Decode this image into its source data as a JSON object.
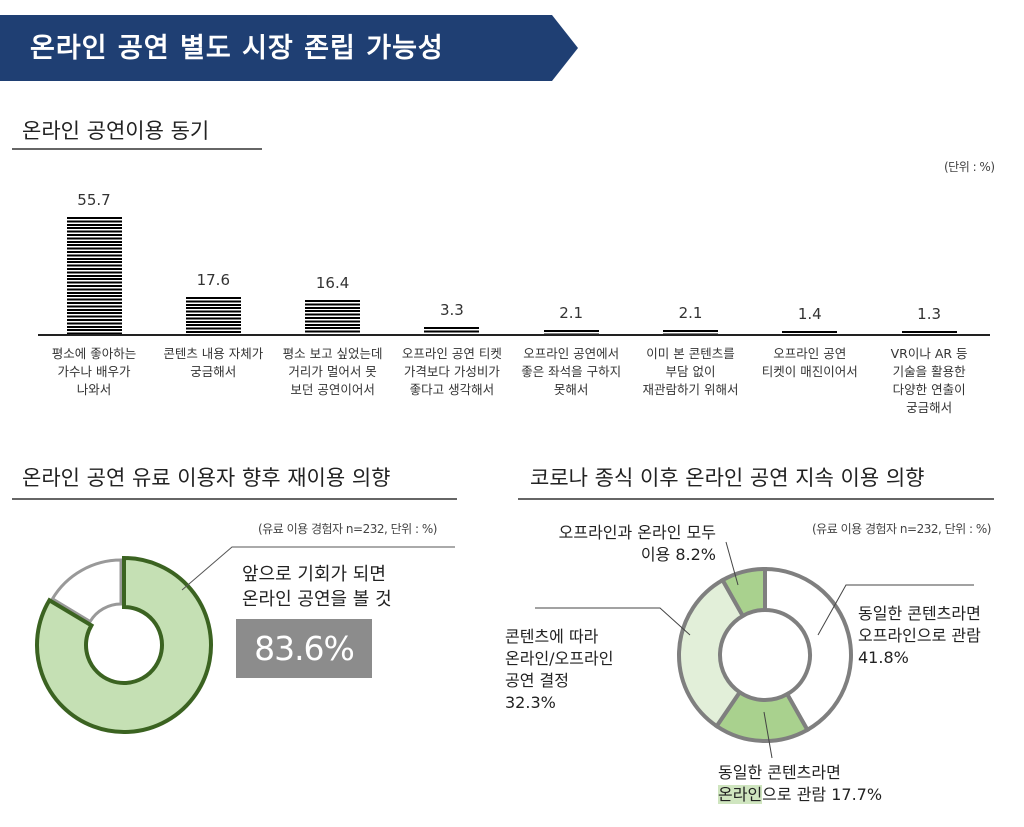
{
  "header": {
    "title": "온라인 공연 별도 시장 존립 가능성",
    "color": "#1f3f73"
  },
  "chart_data": [
    {
      "type": "bar",
      "title": "온라인 공연이용 동기",
      "unit_note": "(단위 : %)",
      "categories": [
        "평소에 좋아하는\n가수나 배우가\n나와서",
        "콘텐츠 내용 자체가\n궁금해서",
        "평소 보고 싶었는데\n거리가 멀어서 못\n보던 공연이어서",
        "오프라인 공연 티켓\n가격보다 가성비가\n좋다고 생각해서",
        "오프라인 공연에서\n좋은 좌석을 구하지\n못해서",
        "이미 본 콘텐츠를\n부담 없이\n재관람하기 위해서",
        "오프라인 공연\n티켓이 매진이어서",
        "VR이나 AR 등\n기술을 활용한\n다양한 연출이\n궁금해서"
      ],
      "values": [
        55.7,
        17.6,
        16.4,
        3.3,
        2.1,
        2.1,
        1.4,
        1.3
      ],
      "value_labels": [
        "55.7",
        "17.6",
        "16.4",
        "3.3",
        "2.1",
        "2.1",
        "1.4",
        "1.3"
      ],
      "ylim": [
        0,
        60
      ]
    },
    {
      "type": "pie",
      "title": "온라인 공연 유료 이용자 향후 재이용 의향",
      "note": "(유료 이용 경험자 n=232, 단위 : %)",
      "slices": [
        {
          "label": "앞으로 기회가 되면\n온라인 공연을 볼 것",
          "value": 83.6,
          "value_label": "83.6%",
          "color": "#c5e0b4",
          "stroke": "#3b6321"
        },
        {
          "label": "",
          "value": 16.4,
          "color": "#ffffff",
          "stroke": "#999999"
        }
      ]
    },
    {
      "type": "pie",
      "title": "코로나 종식 이후 온라인 공연 지속 이용 의향",
      "note": "(유료 이용 경험자 n=232, 단위 : %)",
      "slices": [
        {
          "label": "동일한 콘텐츠라면\n오프라인으로 관람\n41.8%",
          "value": 41.8,
          "color": "#ffffff"
        },
        {
          "label_line1": "동일한 콘텐츠라면",
          "label_highlight": "온라인",
          "label_rest": "으로 관람 17.7%",
          "value": 17.7,
          "color": "#a9d18e"
        },
        {
          "label": "콘텐츠에 따라\n온라인/오프라인\n공연 결정\n32.3%",
          "value": 32.3,
          "color": "#e2efd9"
        },
        {
          "label": "오프라인과 온라인 모두\n이용 8.2%",
          "value": 8.2,
          "color": "#a9d18e"
        }
      ],
      "stroke": "#7f7f7f"
    }
  ]
}
